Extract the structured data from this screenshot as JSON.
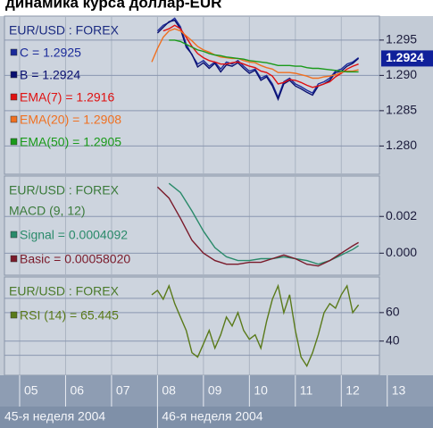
{
  "title": "динамика курса доллар-EUR",
  "xlim": [
    4.67,
    12.83
  ],
  "xticks": [
    {
      "value": 5,
      "label": "05"
    },
    {
      "value": 6,
      "label": "06"
    },
    {
      "value": 7,
      "label": "07"
    },
    {
      "value": 8,
      "label": "08"
    },
    {
      "value": 9,
      "label": "09"
    },
    {
      "value": 10,
      "label": "10"
    },
    {
      "value": 11,
      "label": "11"
    },
    {
      "value": 12,
      "label": "12"
    },
    {
      "value": 13,
      "label": "13"
    }
  ],
  "weeks": [
    {
      "label": "45-я неделя 2004",
      "start": 1
    },
    {
      "label": "46-я неделя 2004",
      "start": 8
    }
  ],
  "chart_data": [
    {
      "type": "line",
      "label": "EUR/USD : FOREX",
      "last_label": "1.2924",
      "ylim": [
        1.276,
        1.2984
      ],
      "yticks": [
        1.295,
        {
          "value": 1.29,
          "label": "1.290"
        },
        1.285,
        {
          "value": 1.28,
          "label": "1.280"
        }
      ],
      "grid": true,
      "x": [
        7.875,
        8,
        8.125,
        8.25,
        8.375,
        8.5,
        8.625,
        8.75,
        8.875,
        9,
        9.125,
        9.25,
        9.375,
        9.5,
        9.625,
        9.75,
        9.875,
        10,
        10.125,
        10.25,
        10.375,
        10.5,
        10.625,
        10.75,
        10.875,
        11,
        11.125,
        11.25,
        11.375,
        11.5,
        11.625,
        11.75,
        11.875,
        12,
        12.125,
        12.25,
        12.375
      ],
      "series": [
        {
          "name": "C = 1.2925",
          "color": "#1a2a9a",
          "values": [
            null,
            1.2963,
            1.2971,
            1.2975,
            1.2981,
            1.2969,
            1.2944,
            1.2929,
            1.2916,
            1.2921,
            1.2913,
            1.2919,
            1.2909,
            1.2919,
            1.2916,
            1.2921,
            1.2913,
            1.2906,
            1.2909,
            1.2896,
            1.29,
            1.2888,
            1.2869,
            1.2891,
            1.2896,
            1.2888,
            1.2884,
            1.2879,
            1.2875,
            1.2888,
            1.2891,
            1.2896,
            1.2906,
            1.2909,
            1.2916,
            1.2919,
            1.2925
          ]
        },
        {
          "name": "B = 1.2924",
          "color": "#0a1070",
          "values": [
            null,
            1.296,
            1.2968,
            1.2976,
            1.2978,
            1.2966,
            1.294,
            1.293,
            1.2912,
            1.2918,
            1.291,
            1.2917,
            1.2905,
            1.2915,
            1.2913,
            1.2918,
            1.291,
            1.2903,
            1.2907,
            1.2893,
            1.2898,
            1.2885,
            1.2866,
            1.2888,
            1.2893,
            1.2885,
            1.2881,
            1.2876,
            1.2872,
            1.2885,
            1.2888,
            1.2893,
            1.2904,
            1.2906,
            1.2913,
            1.2917,
            1.2924
          ]
        },
        {
          "name": "EMA(7) = 1.2916",
          "color": "#e01010",
          "values": [
            null,
            null,
            1.2963,
            1.2966,
            1.2971,
            1.2966,
            1.2954,
            1.2941,
            1.2931,
            1.2925,
            1.2921,
            1.2919,
            1.2916,
            1.2916,
            1.2918,
            1.2919,
            1.2916,
            1.2913,
            1.2911,
            1.2906,
            1.2904,
            1.2899,
            1.2888,
            1.289,
            1.2894,
            1.2893,
            1.289,
            1.2886,
            1.2883,
            1.2885,
            1.2888,
            1.2891,
            1.2898,
            1.2903,
            1.2909,
            1.2913,
            1.2916
          ]
        },
        {
          "name": "EMA(20) = 1.2908",
          "color": "#f07020",
          "values": [
            1.2919,
            1.2938,
            1.2954,
            1.2963,
            1.2966,
            1.2963,
            1.2956,
            1.2949,
            1.2941,
            1.2936,
            1.2933,
            1.2929,
            1.2926,
            1.2925,
            1.2924,
            1.2924,
            1.2921,
            1.2919,
            1.2918,
            1.2914,
            1.2911,
            1.2909,
            1.2904,
            1.2904,
            1.2904,
            1.2903,
            1.2901,
            1.2899,
            1.2896,
            1.2896,
            1.2898,
            1.2899,
            1.2901,
            1.2904,
            1.2906,
            1.2906,
            1.2908
          ]
        },
        {
          "name": "EMA(50) = 1.2905",
          "color": "#1a9a1a",
          "values": [
            null,
            null,
            null,
            1.295,
            1.295,
            1.2948,
            1.2944,
            1.294,
            1.2936,
            1.2934,
            1.2931,
            1.2929,
            1.2928,
            1.2926,
            1.2925,
            1.2924,
            1.2923,
            1.2921,
            1.292,
            1.2919,
            1.2918,
            1.2916,
            1.2914,
            1.2914,
            1.2914,
            1.2913,
            1.2913,
            1.2911,
            1.291,
            1.291,
            1.2909,
            1.2908,
            1.2907,
            1.2906,
            1.2905,
            1.2905,
            1.2905
          ]
        }
      ]
    },
    {
      "type": "line",
      "label": "EUR/USD : FOREX",
      "subtitle": "MACD (9, 12)",
      "ylim": [
        -0.0012,
        0.0042
      ],
      "yticks": [
        0.002,
        {
          "value": 0,
          "label": "0.000"
        }
      ],
      "grid": true,
      "x": [
        8,
        8.25,
        8.5,
        8.75,
        9,
        9.25,
        9.5,
        9.75,
        10,
        10.25,
        10.5,
        10.75,
        11,
        11.25,
        11.5,
        11.75,
        12,
        12.25,
        12.375
      ],
      "series": [
        {
          "name": "Signal = 0.0004092",
          "color": "#2a8a6a",
          "values": [
            null,
            0.0038,
            0.0033,
            0.0023,
            0.0012,
            0.0003,
            -0.0002,
            -0.0004,
            -0.0004,
            -0.0003,
            -0.0003,
            -0.0002,
            -0.0003,
            -0.0004,
            -0.0006,
            -0.0004,
            -0.0001,
            0.0002,
            0.00041
          ]
        },
        {
          "name": "Basic = 0.00058020",
          "color": "#7a1a2a",
          "values": [
            0.0036,
            0.003,
            0.0019,
            0.0007,
            0,
            -0.0004,
            -0.0006,
            -0.0006,
            -0.0005,
            -0.0005,
            -0.0003,
            -0.0001,
            -0.0003,
            -0.0006,
            -0.0007,
            -0.0004,
            0,
            0.0004,
            0.00058
          ]
        }
      ]
    },
    {
      "type": "line",
      "label": "EUR/USD : FOREX",
      "ylim": [
        16,
        85
      ],
      "yticks": [
        60,
        40
      ],
      "levels": [
        70,
        30
      ],
      "grid": true,
      "x": [
        7.875,
        8,
        8.125,
        8.25,
        8.375,
        8.5,
        8.625,
        8.75,
        8.875,
        9,
        9.125,
        9.25,
        9.375,
        9.5,
        9.625,
        9.75,
        9.875,
        10,
        10.125,
        10.25,
        10.375,
        10.5,
        10.625,
        10.75,
        10.875,
        11,
        11.125,
        11.25,
        11.375,
        11.5,
        11.625,
        11.75,
        11.875,
        12,
        12.125,
        12.25,
        12.375
      ],
      "series": [
        {
          "name": "RSI (14) = 65.445",
          "color": "#5a7a1a",
          "values": [
            72.5,
            75.6,
            69.4,
            78.8,
            66.3,
            56.9,
            47.5,
            31.9,
            28.8,
            38.1,
            47.5,
            35,
            44.4,
            56.9,
            50.6,
            60,
            47.5,
            41.3,
            44.4,
            35,
            53.8,
            69.4,
            78.8,
            60,
            72.5,
            47.5,
            28.8,
            22.5,
            31.9,
            44.4,
            60,
            66.3,
            63.1,
            72.5,
            78.8,
            60,
            65.445
          ]
        }
      ]
    }
  ]
}
